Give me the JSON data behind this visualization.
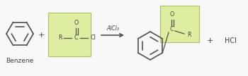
{
  "bg_color": "#f8f8f8",
  "green_box_color": "#ddeea0",
  "green_box_edge": "#a8c060",
  "line_color": "#505050",
  "text_color": "#404040",
  "benzene_color": "#505050",
  "arrow_color": "#505050",
  "label_benzene": "Benzene",
  "label_catalyst": "AlCl₃",
  "label_byproduct": "HCl",
  "label_plus1": "+",
  "label_plus2": "+",
  "figsize": [
    3.5,
    1.08
  ],
  "dpi": 100
}
